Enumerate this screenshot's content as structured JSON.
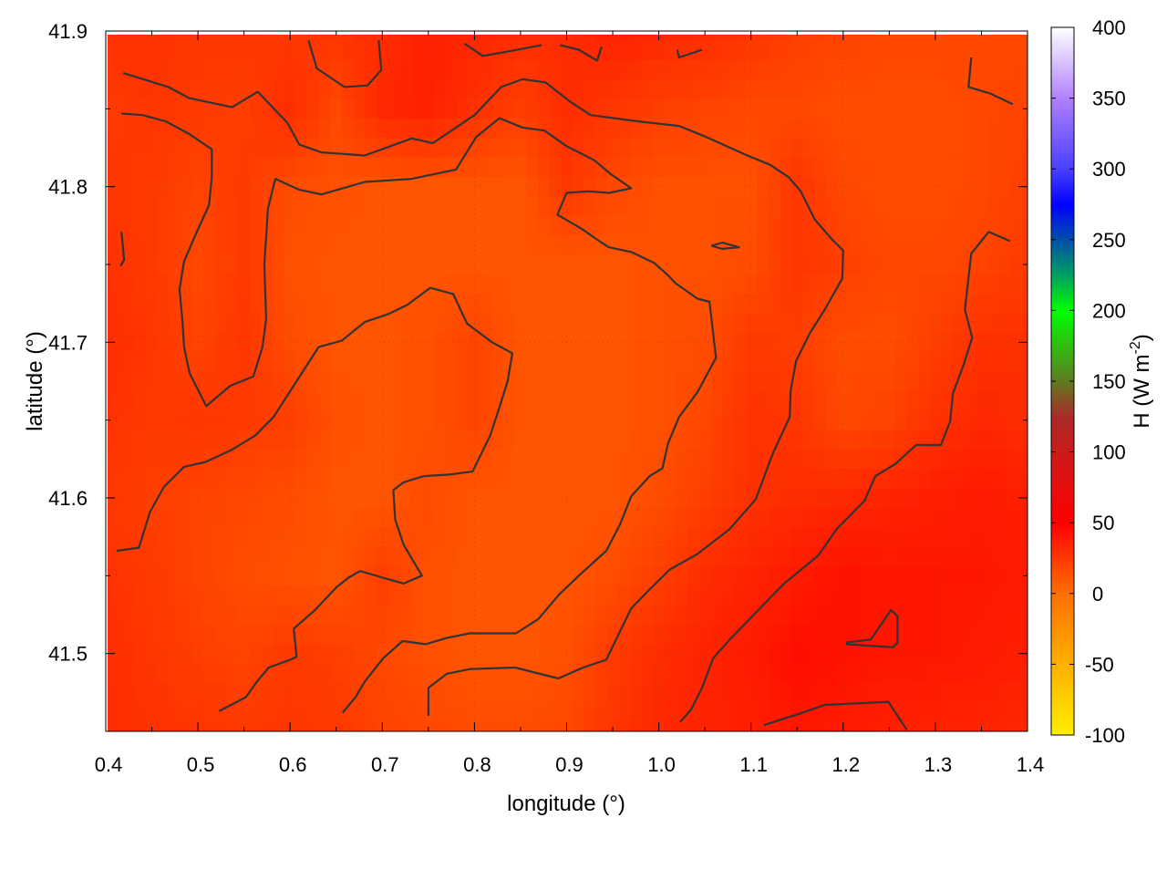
{
  "chart_data": {
    "type": "heatmap",
    "xlabel": "longitude (°)",
    "ylabel": "latitude (°)",
    "colorbar_label": "H (W m",
    "colorbar_label_sup": "-2",
    "colorbar_label_end": ")",
    "xlim": [
      0.4,
      1.4
    ],
    "ylim": [
      41.45,
      41.9
    ],
    "clim": [
      -100,
      400
    ],
    "grid": true,
    "x_ticks": [
      "0.4",
      "0.5",
      "0.6",
      "0.7",
      "0.8",
      "0.9",
      "1.0",
      "1.1",
      "1.2",
      "1.3",
      "1.4"
    ],
    "y_ticks": [
      "41.5",
      "41.6",
      "41.7",
      "41.8",
      "41.9"
    ],
    "colorbar_ticks": [
      "-100",
      "-50",
      "0",
      "50",
      "100",
      "150",
      "200",
      "250",
      "300",
      "350",
      "400"
    ],
    "colormap": [
      [
        -100,
        "#ffee00"
      ],
      [
        -50,
        "#ffb000"
      ],
      [
        0,
        "#ff7000"
      ],
      [
        50,
        "#ff0000"
      ],
      [
        100,
        "#cc1a1a"
      ],
      [
        125,
        "#aa2a2a"
      ],
      [
        150,
        "#607a20"
      ],
      [
        200,
        "#00ff00"
      ],
      [
        225,
        "#00a060"
      ],
      [
        250,
        "#0050a8"
      ],
      [
        275,
        "#0000ff"
      ],
      [
        300,
        "#4a40ff"
      ],
      [
        350,
        "#b080ff"
      ],
      [
        400,
        "#ffffff"
      ]
    ],
    "contour_color": "#333333",
    "grid_lon": [
      0.4,
      0.45,
      0.5,
      0.55,
      0.6,
      0.65,
      0.7,
      0.75,
      0.8,
      0.85,
      0.9,
      0.95,
      1.0,
      1.05,
      1.1,
      1.15,
      1.2,
      1.25,
      1.3,
      1.35,
      1.4
    ],
    "grid_lat": [
      41.9,
      41.85,
      41.8,
      41.75,
      41.7,
      41.65,
      41.6,
      41.55,
      41.5,
      41.45
    ],
    "values": [
      [
        28,
        28,
        26,
        26,
        25,
        27,
        30,
        35,
        33,
        30,
        30,
        35,
        32,
        30,
        26,
        22,
        20,
        18,
        18,
        18,
        18
      ],
      [
        24,
        26,
        24,
        22,
        30,
        18,
        32,
        35,
        28,
        22,
        30,
        26,
        22,
        20,
        18,
        18,
        16,
        16,
        16,
        18,
        20
      ],
      [
        26,
        24,
        20,
        24,
        16,
        14,
        12,
        12,
        12,
        12,
        25,
        18,
        14,
        14,
        14,
        26,
        18,
        16,
        16,
        18,
        22
      ],
      [
        28,
        24,
        18,
        24,
        14,
        12,
        12,
        12,
        12,
        12,
        12,
        12,
        14,
        14,
        16,
        26,
        22,
        18,
        18,
        20,
        24
      ],
      [
        30,
        26,
        20,
        26,
        16,
        12,
        12,
        14,
        20,
        12,
        12,
        12,
        14,
        16,
        24,
        22,
        16,
        16,
        22,
        28,
        28
      ],
      [
        28,
        24,
        26,
        24,
        22,
        14,
        12,
        14,
        20,
        12,
        12,
        12,
        14,
        18,
        28,
        26,
        18,
        20,
        28,
        32,
        30
      ],
      [
        26,
        22,
        20,
        18,
        16,
        12,
        12,
        16,
        12,
        12,
        12,
        12,
        16,
        22,
        28,
        30,
        32,
        34,
        36,
        38,
        36
      ],
      [
        28,
        24,
        20,
        16,
        14,
        12,
        22,
        14,
        12,
        12,
        12,
        16,
        22,
        30,
        34,
        38,
        42,
        40,
        40,
        40,
        38
      ],
      [
        30,
        26,
        22,
        20,
        24,
        22,
        18,
        14,
        12,
        12,
        14,
        24,
        30,
        34,
        38,
        44,
        42,
        40,
        40,
        38,
        36
      ],
      [
        30,
        28,
        26,
        24,
        26,
        24,
        20,
        18,
        16,
        16,
        18,
        26,
        32,
        34,
        36,
        40,
        38,
        36,
        34,
        34,
        32
      ]
    ],
    "contours": [
      [
        [
          0.419,
          41.873
        ],
        [
          0.468,
          41.864
        ],
        [
          0.49,
          41.857
        ],
        [
          0.537,
          41.851
        ],
        [
          0.565,
          41.861
        ],
        [
          0.597,
          41.841
        ],
        [
          0.61,
          41.827
        ],
        [
          0.634,
          41.822
        ],
        [
          0.681,
          41.82
        ],
        [
          0.732,
          41.831
        ],
        [
          0.755,
          41.828
        ],
        [
          0.8,
          41.846
        ],
        [
          0.829,
          41.864
        ],
        [
          0.852,
          41.869
        ],
        [
          0.877,
          41.867
        ],
        [
          0.903,
          41.855
        ],
        [
          0.926,
          41.846
        ],
        [
          0.977,
          41.842
        ],
        [
          1.022,
          41.839
        ],
        [
          1.047,
          41.833
        ],
        [
          1.096,
          41.82
        ],
        [
          1.121,
          41.814
        ],
        [
          1.141,
          41.806
        ],
        [
          1.154,
          41.797
        ],
        [
          1.169,
          41.779
        ],
        [
          1.188,
          41.766
        ],
        [
          1.2,
          41.759
        ],
        [
          1.199,
          41.741
        ],
        [
          1.18,
          41.721
        ],
        [
          1.164,
          41.706
        ],
        [
          1.149,
          41.688
        ],
        [
          1.143,
          41.669
        ],
        [
          1.142,
          41.652
        ],
        [
          1.124,
          41.629
        ],
        [
          1.105,
          41.599
        ],
        [
          1.077,
          41.58
        ],
        [
          1.042,
          41.564
        ],
        [
          1.012,
          41.554
        ],
        [
          0.988,
          41.54
        ],
        [
          0.97,
          41.529
        ],
        [
          0.943,
          41.496
        ],
        [
          0.918,
          41.491
        ],
        [
          0.891,
          41.484
        ],
        [
          0.844,
          41.491
        ],
        [
          0.795,
          41.49
        ],
        [
          0.77,
          41.487
        ],
        [
          0.75,
          41.478
        ],
        [
          0.75,
          41.46
        ]
      ],
      [
        [
          0.417,
          41.847
        ],
        [
          0.44,
          41.846
        ],
        [
          0.465,
          41.842
        ],
        [
          0.49,
          41.834
        ],
        [
          0.515,
          41.824
        ],
        [
          0.515,
          41.806
        ],
        [
          0.512,
          41.788
        ],
        [
          0.498,
          41.77
        ],
        [
          0.485,
          41.752
        ],
        [
          0.48,
          41.734
        ],
        [
          0.483,
          41.715
        ],
        [
          0.485,
          41.697
        ],
        [
          0.491,
          41.68
        ],
        [
          0.509,
          41.659
        ],
        [
          0.535,
          41.672
        ],
        [
          0.56,
          41.678
        ],
        [
          0.57,
          41.697
        ],
        [
          0.574,
          41.715
        ],
        [
          0.572,
          41.75
        ],
        [
          0.576,
          41.786
        ],
        [
          0.584,
          41.805
        ],
        [
          0.61,
          41.798
        ],
        [
          0.634,
          41.795
        ],
        [
          0.681,
          41.803
        ],
        [
          0.732,
          41.805
        ],
        [
          0.78,
          41.811
        ],
        [
          0.802,
          41.832
        ],
        [
          0.827,
          41.844
        ],
        [
          0.852,
          41.838
        ],
        [
          0.876,
          41.836
        ],
        [
          0.9,
          41.826
        ],
        [
          0.93,
          41.817
        ],
        [
          0.948,
          41.808
        ],
        [
          0.97,
          41.799
        ],
        [
          0.946,
          41.796
        ],
        [
          0.923,
          41.797
        ],
        [
          0.9,
          41.796
        ],
        [
          0.89,
          41.782
        ],
        [
          0.916,
          41.773
        ],
        [
          0.938,
          41.764
        ],
        [
          0.946,
          41.761
        ],
        [
          0.97,
          41.758
        ],
        [
          0.995,
          41.751
        ],
        [
          1.01,
          41.743
        ],
        [
          1.018,
          41.738
        ],
        [
          1.042,
          41.728
        ],
        [
          1.055,
          41.726
        ],
        [
          1.062,
          41.69
        ],
        [
          1.042,
          41.668
        ],
        [
          1.022,
          41.652
        ],
        [
          1.01,
          41.635
        ],
        [
          1.004,
          41.619
        ],
        [
          0.99,
          41.614
        ],
        [
          0.97,
          41.601
        ],
        [
          0.958,
          41.583
        ],
        [
          0.943,
          41.566
        ],
        [
          0.915,
          41.551
        ],
        [
          0.892,
          41.538
        ],
        [
          0.869,
          41.522
        ],
        [
          0.845,
          41.513
        ],
        [
          0.795,
          41.513
        ],
        [
          0.77,
          41.51
        ],
        [
          0.747,
          41.506
        ],
        [
          0.722,
          41.508
        ],
        [
          0.701,
          41.497
        ],
        [
          0.681,
          41.482
        ],
        [
          0.671,
          41.472
        ],
        [
          0.657,
          41.462
        ]
      ],
      [
        [
          0.412,
          41.566
        ],
        [
          0.436,
          41.568
        ],
        [
          0.448,
          41.591
        ],
        [
          0.463,
          41.607
        ],
        [
          0.485,
          41.62
        ],
        [
          0.508,
          41.623
        ],
        [
          0.537,
          41.631
        ],
        [
          0.562,
          41.64
        ],
        [
          0.582,
          41.652
        ],
        [
          0.607,
          41.675
        ],
        [
          0.631,
          41.697
        ],
        [
          0.656,
          41.701
        ],
        [
          0.681,
          41.713
        ],
        [
          0.706,
          41.718
        ],
        [
          0.727,
          41.724
        ],
        [
          0.752,
          41.735
        ],
        [
          0.777,
          41.731
        ],
        [
          0.792,
          41.712
        ],
        [
          0.819,
          41.7
        ],
        [
          0.841,
          41.693
        ],
        [
          0.836,
          41.675
        ],
        [
          0.827,
          41.658
        ],
        [
          0.817,
          41.64
        ],
        [
          0.798,
          41.617
        ],
        [
          0.773,
          41.615
        ],
        [
          0.745,
          41.614
        ],
        [
          0.723,
          41.61
        ],
        [
          0.712,
          41.605
        ],
        [
          0.714,
          41.586
        ],
        [
          0.723,
          41.57
        ],
        [
          0.743,
          41.55
        ],
        [
          0.723,
          41.545
        ],
        [
          0.699,
          41.549
        ],
        [
          0.676,
          41.553
        ],
        [
          0.664,
          41.549
        ],
        [
          0.651,
          41.543
        ],
        [
          0.627,
          41.528
        ],
        [
          0.604,
          41.516
        ],
        [
          0.607,
          41.498
        ],
        [
          0.6,
          41.496
        ],
        [
          0.577,
          41.491
        ],
        [
          0.564,
          41.482
        ],
        [
          0.552,
          41.472
        ],
        [
          0.523,
          41.463
        ]
      ],
      [
        [
          0.62,
          41.894
        ],
        [
          0.629,
          41.876
        ],
        [
          0.659,
          41.864
        ],
        [
          0.684,
          41.865
        ],
        [
          0.699,
          41.875
        ],
        [
          0.696,
          41.894
        ]
      ],
      [
        [
          0.789,
          41.892
        ],
        [
          0.809,
          41.884
        ],
        [
          0.838,
          41.887
        ],
        [
          0.873,
          41.891
        ]
      ],
      [
        [
          0.893,
          41.891
        ],
        [
          0.913,
          41.888
        ],
        [
          0.933,
          41.881
        ],
        [
          0.938,
          41.89
        ]
      ],
      [
        [
          1.02,
          41.888
        ],
        [
          1.022,
          41.883
        ],
        [
          1.047,
          41.888
        ]
      ],
      [
        [
          1.339,
          41.883
        ],
        [
          1.336,
          41.864
        ],
        [
          1.359,
          41.86
        ],
        [
          1.384,
          41.853
        ]
      ],
      [
        [
          1.381,
          41.765
        ],
        [
          1.358,
          41.771
        ],
        [
          1.339,
          41.757
        ],
        [
          1.332,
          41.721
        ],
        [
          1.34,
          41.703
        ],
        [
          1.331,
          41.686
        ],
        [
          1.319,
          41.667
        ],
        [
          1.316,
          41.649
        ],
        [
          1.306,
          41.634
        ],
        [
          1.279,
          41.634
        ],
        [
          1.257,
          41.622
        ],
        [
          1.235,
          41.614
        ],
        [
          1.223,
          41.598
        ],
        [
          1.193,
          41.58
        ],
        [
          1.173,
          41.563
        ],
        [
          1.136,
          41.545
        ],
        [
          1.108,
          41.528
        ],
        [
          1.077,
          41.509
        ],
        [
          1.059,
          41.497
        ],
        [
          1.047,
          41.478
        ],
        [
          1.035,
          41.464
        ],
        [
          1.023,
          41.456
        ]
      ],
      [
        [
          1.203,
          41.507
        ],
        [
          1.23,
          41.509
        ],
        [
          1.252,
          41.528
        ],
        [
          1.259,
          41.524
        ],
        [
          1.259,
          41.507
        ],
        [
          1.254,
          41.504
        ],
        [
          1.203,
          41.506
        ]
      ],
      [
        [
          1.114,
          41.454
        ],
        [
          1.151,
          41.461
        ],
        [
          1.18,
          41.467
        ],
        [
          1.249,
          41.469
        ],
        [
          1.269,
          41.451
        ]
      ],
      [
        [
          1.057,
          41.762
        ],
        [
          1.069,
          41.764
        ],
        [
          1.087,
          41.761
        ],
        [
          1.069,
          41.76
        ],
        [
          1.057,
          41.762
        ]
      ],
      [
        [
          0.417,
          41.771
        ],
        [
          0.42,
          41.753
        ],
        [
          0.416,
          41.749
        ]
      ]
    ]
  }
}
